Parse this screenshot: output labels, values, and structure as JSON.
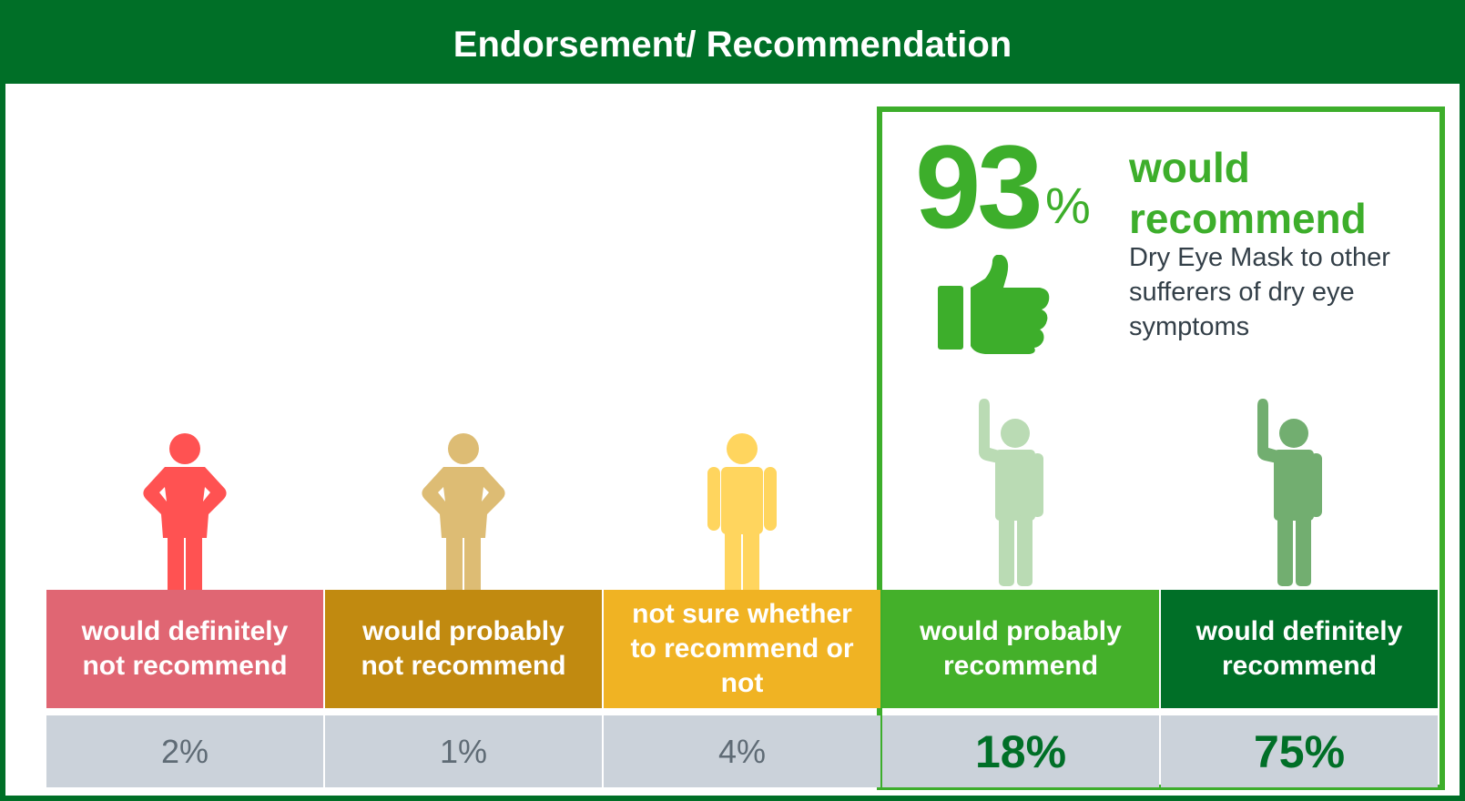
{
  "chart_data": {
    "type": "table",
    "title": "Endorsement/ Recommendation",
    "categories": [
      "would definitely not recommend",
      "would probably not recommend",
      "not sure whether to recommend or not",
      "would probably recommend",
      "would definitely recommend"
    ],
    "values": [
      2,
      1,
      4,
      18,
      75
    ],
    "value_labels": [
      "2%",
      "1%",
      "4%",
      "18%",
      "75%"
    ],
    "category_colors": [
      "#E06673",
      "#C18A10",
      "#F0B323",
      "#44B02A",
      "#006F27"
    ],
    "figure_colors": [
      "#FF5252",
      "#DDBC74",
      "#FFD55E",
      "#BADBB4",
      "#72AE70"
    ],
    "highlight": {
      "value": 93,
      "value_label": "93",
      "unit": "%",
      "title": "would recommend",
      "text": "Dry Eye Mask to other sufferers of dry eye symptoms",
      "icon": "thumbs-up-icon"
    },
    "colors": {
      "header": "#006F27",
      "highlight_border": "#3DAE2B",
      "value_row": "#CBD2DA",
      "muted_text": "#5F6B75",
      "strong_text": "#006F27",
      "accent_text": "#3DAE2B"
    }
  }
}
